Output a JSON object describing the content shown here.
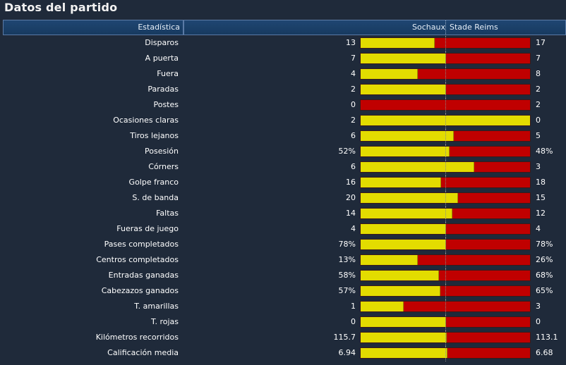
{
  "title": "Datos del partido",
  "header": {
    "stat_col": "Estadística",
    "home_team": "Sochaux",
    "away_team": "Stade Reims"
  },
  "colors": {
    "home": "#e3dc00",
    "away": "#c00000",
    "background": "#1f2a3a"
  },
  "stats": [
    {
      "label": "Disparos",
      "home": "13",
      "away": "17",
      "home_share": 0.433
    },
    {
      "label": "A puerta",
      "home": "7",
      "away": "7",
      "home_share": 0.5
    },
    {
      "label": "Fuera",
      "home": "4",
      "away": "8",
      "home_share": 0.333
    },
    {
      "label": "Paradas",
      "home": "2",
      "away": "2",
      "home_share": 0.5
    },
    {
      "label": "Postes",
      "home": "0",
      "away": "2",
      "home_share": 0.0
    },
    {
      "label": "Ocasiones claras",
      "home": "2",
      "away": "0",
      "home_share": 1.0
    },
    {
      "label": "Tiros lejanos",
      "home": "6",
      "away": "5",
      "home_share": 0.545
    },
    {
      "label": "Posesión",
      "home": "52%",
      "away": "48%",
      "home_share": 0.52
    },
    {
      "label": "Córners",
      "home": "6",
      "away": "3",
      "home_share": 0.667
    },
    {
      "label": "Golpe franco",
      "home": "16",
      "away": "18",
      "home_share": 0.471
    },
    {
      "label": "S. de banda",
      "home": "20",
      "away": "15",
      "home_share": 0.571
    },
    {
      "label": "Faltas",
      "home": "14",
      "away": "12",
      "home_share": 0.538
    },
    {
      "label": "Fueras de juego",
      "home": "4",
      "away": "4",
      "home_share": 0.5
    },
    {
      "label": "Pases completados",
      "home": "78%",
      "away": "78%",
      "home_share": 0.5
    },
    {
      "label": "Centros completados",
      "home": "13%",
      "away": "26%",
      "home_share": 0.333
    },
    {
      "label": "Entradas ganadas",
      "home": "58%",
      "away": "68%",
      "home_share": 0.46
    },
    {
      "label": "Cabezazos ganados",
      "home": "57%",
      "away": "65%",
      "home_share": 0.467
    },
    {
      "label": "T. amarillas",
      "home": "1",
      "away": "3",
      "home_share": 0.25
    },
    {
      "label": "T. rojas",
      "home": "0",
      "away": "0",
      "home_share": 0.5
    },
    {
      "label": "Kilómetros recorridos",
      "home": "115.7",
      "away": "113.1",
      "home_share": 0.506
    },
    {
      "label": "Calificación media",
      "home": "6.94",
      "away": "6.68",
      "home_share": 0.51
    }
  ]
}
